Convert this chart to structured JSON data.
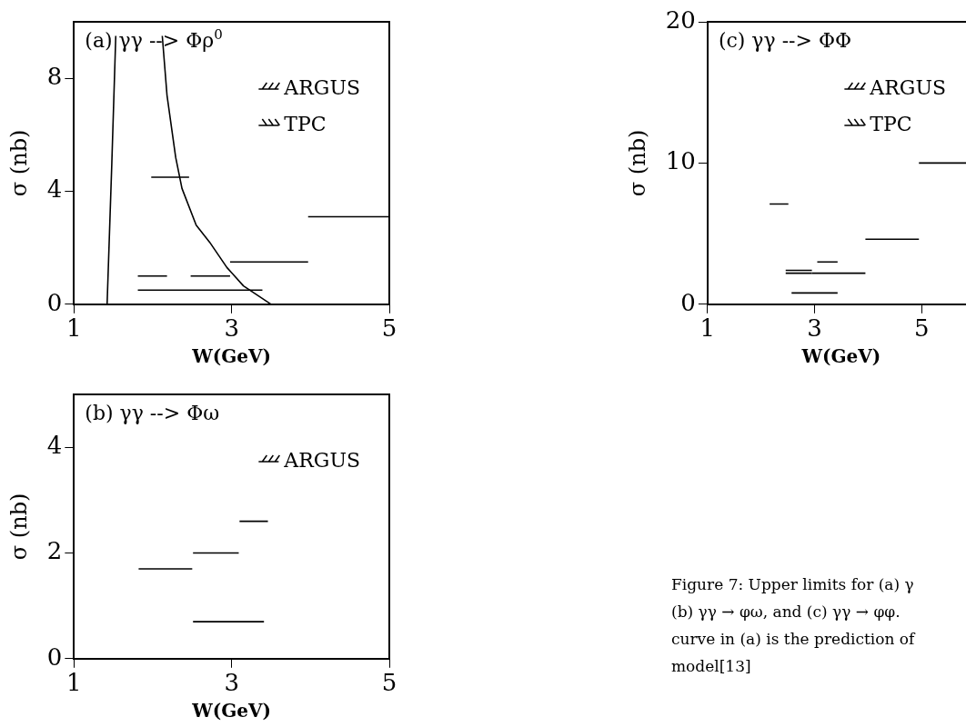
{
  "chart_data": [
    {
      "type": "line",
      "title": "(a) γγ --> Φρ$^{0}$",
      "xlabel": "W(GeV)",
      "ylabel": "σ (nb)",
      "xlim": [
        1,
        5
      ],
      "xticks": [
        1,
        3,
        5
      ],
      "ylim": [
        0,
        10
      ],
      "yticks": [
        0,
        4,
        8
      ],
      "legend": "top right",
      "marker": "none",
      "line_style": "solid",
      "grid": false,
      "series": [
        {
          "name": "ARGUS",
          "color": "#000000",
          "x": [
            1.81,
            2.18,
            null,
            1.81,
            3.39
          ],
          "values": [
            1.0,
            1.0,
            null,
            0.5,
            0.5
          ]
        },
        {
          "name": "TPC",
          "color": "#000000",
          "x": [
            1.98,
            2.46,
            null,
            2.48,
            2.98,
            null,
            2.98,
            3.97,
            null,
            3.97,
            5.0
          ],
          "values": [
            4.5,
            4.5,
            null,
            1.0,
            1.0,
            null,
            1.5,
            1.5,
            null,
            3.1,
            3.1
          ]
        },
        {
          "color": "#000000",
          "x": [
            1.42,
            1.48,
            1.53,
            null,
            2.12,
            2.18,
            2.29,
            2.37,
            2.55,
            2.72,
            2.94,
            3.15,
            3.5
          ],
          "values": [
            0,
            5,
            9.5,
            null,
            9.5,
            7.4,
            5.2,
            4.1,
            2.8,
            2.2,
            1.3,
            0.65,
            0
          ]
        }
      ]
    },
    {
      "type": "line",
      "title": "(b) γγ --> Φω",
      "xlabel": "W(GeV)",
      "ylabel": "σ (nb)",
      "xlim": [
        1,
        5
      ],
      "xticks": [
        1,
        3,
        5
      ],
      "ylim": [
        0,
        5
      ],
      "yticks": [
        0,
        2,
        4
      ],
      "legend": "top right",
      "marker": "none",
      "line_style": "solid",
      "grid": false,
      "series": [
        {
          "name": "ARGUS",
          "color": "#000000",
          "x": [
            1.82,
            2.5,
            null,
            2.51,
            3.09,
            null,
            3.1,
            3.46,
            null,
            2.51,
            3.41
          ],
          "values": [
            1.7,
            1.7,
            null,
            2.0,
            2.0,
            null,
            2.6,
            2.6,
            null,
            0.7,
            0.7
          ]
        }
      ]
    },
    {
      "type": "line",
      "title": "(c) γγ --> ΦΦ",
      "xlabel": "W(GeV)",
      "ylabel": "σ (nb)",
      "xlim": [
        1,
        6
      ],
      "xticks": [
        1,
        3,
        5
      ],
      "ylim": [
        0,
        20
      ],
      "yticks": [
        0,
        10,
        20
      ],
      "legend": "top right",
      "marker": "none",
      "line_style": "solid",
      "grid": false,
      "annotations": [
        "Figure 7: Upper limits for (a) γ\n(b) γγ → φω, and (c) γγ → φφ.\ncurve in (a) is the prediction of\nmodel[13]"
      ],
      "series": [
        {
          "name": "ARGUS",
          "color": "#000000",
          "x": [
            2.16,
            2.51,
            null,
            2.46,
            2.95,
            null,
            3.05,
            3.43,
            null,
            2.57,
            3.43
          ],
          "values": [
            7.1,
            7.1,
            null,
            2.2,
            2.2,
            null,
            3.0,
            3.0,
            null,
            0.8,
            0.8
          ]
        },
        {
          "name": "TPC",
          "color": "#000000",
          "x": [
            2.46,
            2.95,
            null,
            2.95,
            3.95,
            null,
            3.95,
            4.95,
            null,
            4.95,
            6.0
          ],
          "values": [
            2.4,
            2.4,
            null,
            2.2,
            2.2,
            null,
            4.6,
            4.6,
            null,
            10,
            10
          ]
        }
      ]
    }
  ]
}
